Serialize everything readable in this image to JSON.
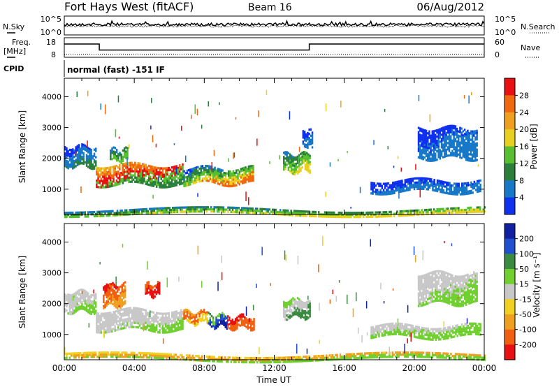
{
  "header": {
    "radar": "Fort Hays West (fitACF)",
    "beam": "Beam 16",
    "date": "06/Aug/2012"
  },
  "noise_panel": {
    "left_label": "N.Sky",
    "right_label": "N.Search",
    "left_ticks": [
      "10^5",
      "10^0"
    ],
    "right_ticks": [
      "10^5",
      "10^0"
    ]
  },
  "freq_panel": {
    "left_label_1": "Freq.",
    "left_label_2": "[MHz]",
    "right_label": "Nave",
    "left_ticks": [
      "18",
      "8"
    ],
    "right_ticks": [
      "60",
      "0"
    ],
    "freq_steps": [
      {
        "t": 0.0,
        "mhz": 14.8
      },
      {
        "t": 2.0,
        "mhz": 11.7
      },
      {
        "t": 14.0,
        "mhz": 14.8
      },
      {
        "t": 24.0,
        "mhz": 14.8
      }
    ],
    "nave_level": 0.15
  },
  "cpid": {
    "label": "CPID",
    "text": "normal (fast) -151 IF"
  },
  "chart_data": [
    {
      "type": "heatmap",
      "name": "power",
      "xlabel": "",
      "ylabel": "Slant Range [km]",
      "x_range_hours": [
        0,
        24
      ],
      "ylim_km": [
        180,
        4600
      ],
      "y_ticks": [
        "1000",
        "2000",
        "3000",
        "4000"
      ],
      "colorbar": {
        "label": "Power [dB]",
        "ticks": [
          "4",
          "8",
          "12",
          "16",
          "20",
          "24",
          "28"
        ],
        "colors": [
          "#1030f0",
          "#1878c8",
          "#2a7f3a",
          "#58c030",
          "#e8d020",
          "#f0a020",
          "#f06810",
          "#e81010"
        ]
      }
    },
    {
      "type": "heatmap",
      "name": "velocity",
      "xlabel": "Time UT",
      "ylabel": "Slant Range [km]",
      "x_range_hours": [
        0,
        24
      ],
      "ylim_km": [
        180,
        4600
      ],
      "x_ticks": [
        "00:00",
        "04:00",
        "08:00",
        "12:00",
        "16:00",
        "20:00",
        "00:00"
      ],
      "y_ticks": [
        "1000",
        "2000",
        "3000",
        "4000"
      ],
      "colorbar": {
        "label": "Velocity [m s⁻¹]",
        "ticks": [
          "200",
          "100",
          "50",
          "15",
          "-15",
          "-50",
          "-100",
          "-200"
        ],
        "colors": [
          "#1020a0",
          "#2050d0",
          "#3a8a40",
          "#70d030",
          "#c8c8c8",
          "#f0d020",
          "#f0a020",
          "#f06010",
          "#e81010"
        ]
      }
    }
  ],
  "regions": {
    "power": [
      {
        "t0": 0.0,
        "t1": 1.8,
        "r0": 1780,
        "r1": 2400,
        "c": [
          0,
          0,
          1,
          1,
          2
        ]
      },
      {
        "t0": 1.8,
        "t1": 6.8,
        "r0": 1180,
        "r1": 1800,
        "c": [
          4,
          5,
          6,
          7,
          3,
          2
        ]
      },
      {
        "t0": 6.8,
        "t1": 10.8,
        "r0": 1200,
        "r1": 1700,
        "c": [
          0,
          1,
          2,
          3,
          4,
          6
        ]
      },
      {
        "t0": 2.6,
        "t1": 3.6,
        "r0": 1950,
        "r1": 2300,
        "c": [
          1,
          2,
          3
        ]
      },
      {
        "t0": 12.5,
        "t1": 14.0,
        "r0": 1550,
        "r1": 2150,
        "c": [
          1,
          2,
          3,
          4
        ]
      },
      {
        "t0": 13.6,
        "t1": 14.2,
        "r0": 2400,
        "r1": 2900,
        "c": [
          0,
          1
        ]
      },
      {
        "t0": 20.2,
        "t1": 23.6,
        "r0": 2000,
        "r1": 3000,
        "c": [
          0,
          1
        ]
      },
      {
        "t0": 17.5,
        "t1": 23.8,
        "r0": 900,
        "r1": 1300,
        "c": [
          0,
          1
        ]
      },
      {
        "t0": 0.0,
        "t1": 24.0,
        "r0": 200,
        "r1": 360,
        "c": [
          1,
          2,
          3,
          4
        ]
      }
    ],
    "velocity": [
      {
        "t0": 0.0,
        "t1": 1.8,
        "r0": 1780,
        "r1": 2400,
        "c": [
          4,
          4,
          4,
          3
        ]
      },
      {
        "t0": 1.8,
        "t1": 6.8,
        "r0": 1180,
        "r1": 1800,
        "c": [
          4,
          4,
          4,
          4,
          3
        ]
      },
      {
        "t0": 2.2,
        "t1": 3.5,
        "r0": 1950,
        "r1": 2650,
        "c": [
          8,
          7,
          6
        ]
      },
      {
        "t0": 4.6,
        "t1": 5.4,
        "r0": 2300,
        "r1": 2650,
        "c": [
          7,
          8
        ]
      },
      {
        "t0": 6.8,
        "t1": 8.2,
        "r0": 1350,
        "r1": 1750,
        "c": [
          6,
          7,
          5
        ]
      },
      {
        "t0": 8.2,
        "t1": 9.3,
        "r0": 1300,
        "r1": 1650,
        "c": [
          2,
          3,
          1,
          0
        ]
      },
      {
        "t0": 9.3,
        "t1": 10.8,
        "r0": 1200,
        "r1": 1600,
        "c": [
          8,
          7
        ]
      },
      {
        "t0": 12.5,
        "t1": 14.0,
        "r0": 1550,
        "r1": 2150,
        "c": [
          3,
          4,
          2
        ]
      },
      {
        "t0": 20.2,
        "t1": 23.6,
        "r0": 2000,
        "r1": 3000,
        "c": [
          4,
          4,
          3
        ]
      },
      {
        "t0": 17.5,
        "t1": 23.8,
        "r0": 900,
        "r1": 1300,
        "c": [
          4,
          3
        ]
      },
      {
        "t0": 0.0,
        "t1": 24.0,
        "r0": 200,
        "r1": 360,
        "c": [
          5,
          6,
          3
        ]
      }
    ]
  }
}
